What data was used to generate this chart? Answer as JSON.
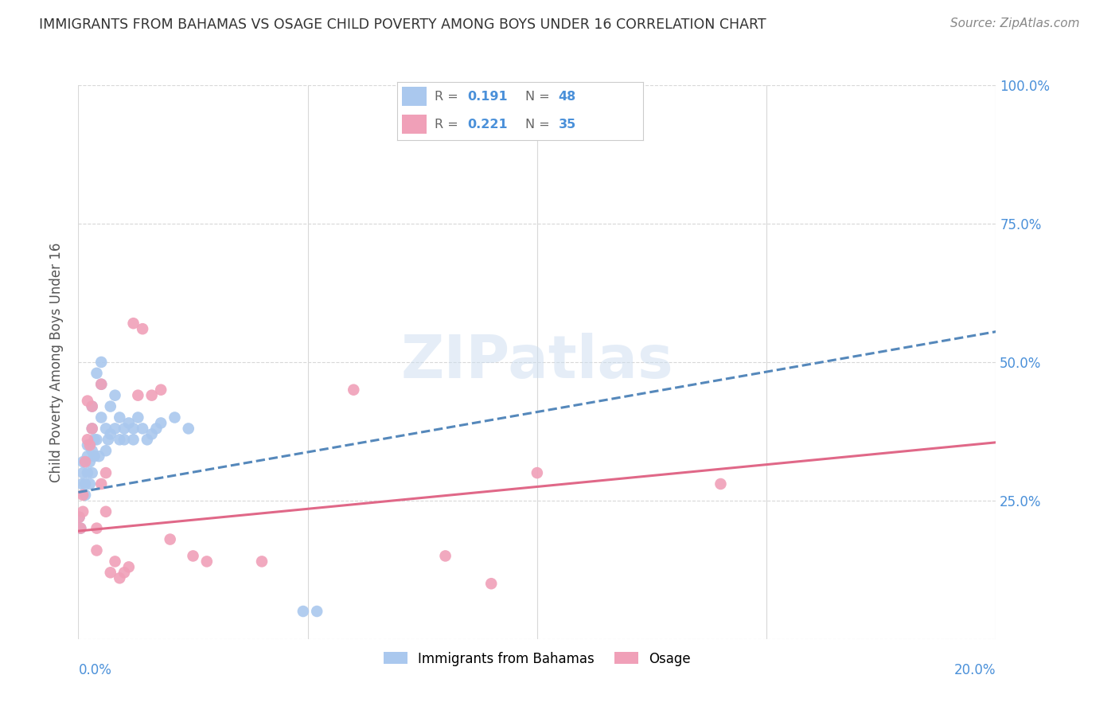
{
  "title": "IMMIGRANTS FROM BAHAMAS VS OSAGE CHILD POVERTY AMONG BOYS UNDER 16 CORRELATION CHART",
  "source": "Source: ZipAtlas.com",
  "ylabel": "Child Poverty Among Boys Under 16",
  "xlim": [
    0.0,
    0.2
  ],
  "ylim": [
    0.0,
    1.0
  ],
  "yticks": [
    0.0,
    0.25,
    0.5,
    0.75,
    1.0
  ],
  "ytick_labels": [
    "",
    "25.0%",
    "50.0%",
    "75.0%",
    "100.0%"
  ],
  "xticks": [
    0.0,
    0.05,
    0.1,
    0.15,
    0.2
  ],
  "background_color": "#ffffff",
  "grid_color": "#d8d8d8",
  "title_color": "#333333",
  "tick_color": "#4a90d9",
  "watermark": "ZIPatlas",
  "series": [
    {
      "name": "Immigrants from Bahamas",
      "R": 0.191,
      "N": 48,
      "color": "#aac8ee",
      "line_color": "#5588bb",
      "line_style": "--",
      "x": [
        0.0002,
        0.0005,
        0.0008,
        0.001,
        0.001,
        0.0015,
        0.0015,
        0.002,
        0.002,
        0.002,
        0.0025,
        0.0025,
        0.003,
        0.003,
        0.003,
        0.003,
        0.0035,
        0.0035,
        0.004,
        0.004,
        0.0045,
        0.005,
        0.005,
        0.005,
        0.006,
        0.006,
        0.0065,
        0.007,
        0.007,
        0.008,
        0.008,
        0.009,
        0.009,
        0.01,
        0.01,
        0.011,
        0.012,
        0.012,
        0.013,
        0.014,
        0.015,
        0.016,
        0.017,
        0.018,
        0.021,
        0.024,
        0.049,
        0.052
      ],
      "y": [
        0.22,
        0.2,
        0.28,
        0.3,
        0.32,
        0.26,
        0.28,
        0.3,
        0.33,
        0.35,
        0.28,
        0.32,
        0.42,
        0.38,
        0.34,
        0.3,
        0.36,
        0.33,
        0.48,
        0.36,
        0.33,
        0.5,
        0.46,
        0.4,
        0.38,
        0.34,
        0.36,
        0.42,
        0.37,
        0.44,
        0.38,
        0.4,
        0.36,
        0.38,
        0.36,
        0.39,
        0.38,
        0.36,
        0.4,
        0.38,
        0.36,
        0.37,
        0.38,
        0.39,
        0.4,
        0.38,
        0.05,
        0.05
      ],
      "trend_x": [
        0.0,
        0.2
      ],
      "trend_y": [
        0.265,
        0.555
      ]
    },
    {
      "name": "Osage",
      "R": 0.221,
      "N": 35,
      "color": "#f0a0b8",
      "line_color": "#e06888",
      "line_style": "-",
      "x": [
        0.0002,
        0.0005,
        0.001,
        0.001,
        0.0015,
        0.002,
        0.002,
        0.0025,
        0.003,
        0.003,
        0.004,
        0.004,
        0.005,
        0.005,
        0.006,
        0.006,
        0.007,
        0.008,
        0.009,
        0.01,
        0.011,
        0.012,
        0.013,
        0.014,
        0.016,
        0.018,
        0.02,
        0.025,
        0.028,
        0.04,
        0.06,
        0.08,
        0.09,
        0.1,
        0.14
      ],
      "y": [
        0.22,
        0.2,
        0.26,
        0.23,
        0.32,
        0.36,
        0.43,
        0.35,
        0.42,
        0.38,
        0.2,
        0.16,
        0.46,
        0.28,
        0.3,
        0.23,
        0.12,
        0.14,
        0.11,
        0.12,
        0.13,
        0.57,
        0.44,
        0.56,
        0.44,
        0.45,
        0.18,
        0.15,
        0.14,
        0.14,
        0.45,
        0.15,
        0.1,
        0.3,
        0.28
      ],
      "trend_x": [
        0.0,
        0.2
      ],
      "trend_y": [
        0.195,
        0.355
      ]
    }
  ]
}
